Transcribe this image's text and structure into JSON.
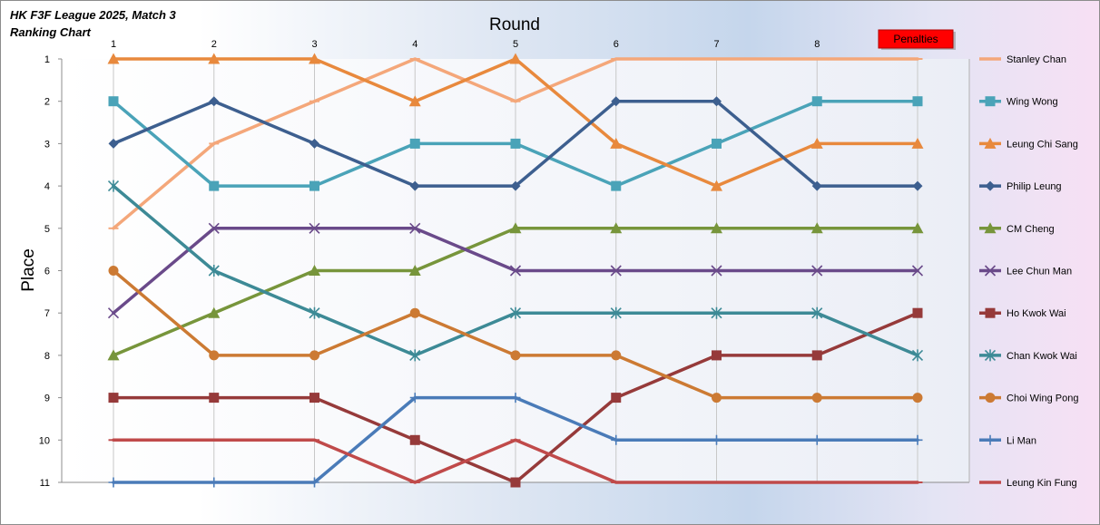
{
  "chart_data": {
    "type": "line",
    "title": "HK F3F League 2025, Match 3",
    "subtitle": "Ranking Chart",
    "xlabel": "Round",
    "ylabel": "Place",
    "x": [
      1,
      2,
      3,
      4,
      5,
      6,
      7,
      8,
      "Penalties"
    ],
    "x_tick_labels": [
      "1",
      "2",
      "3",
      "4",
      "5",
      "6",
      "7",
      "8"
    ],
    "penalties_label": "Penalties",
    "y_ticks": [
      1,
      2,
      3,
      4,
      5,
      6,
      7,
      8,
      9,
      10,
      11
    ],
    "ylim": [
      1,
      11
    ],
    "y_reversed": true,
    "grid": "vertical",
    "legend": "right",
    "series": [
      {
        "name": "Stanley Chan",
        "values": [
          5,
          3,
          2,
          1,
          2,
          1,
          1,
          1,
          1
        ],
        "color": "#f4a77a",
        "marker": "dash"
      },
      {
        "name": "Wing Wong",
        "values": [
          2,
          4,
          4,
          3,
          3,
          4,
          3,
          2,
          2
        ],
        "color": "#4aa3b8",
        "marker": "square"
      },
      {
        "name": "Leung Chi Sang",
        "values": [
          1,
          1,
          1,
          2,
          1,
          3,
          4,
          3,
          3
        ],
        "color": "#e8893d",
        "marker": "triangle"
      },
      {
        "name": "Philip Leung",
        "values": [
          3,
          2,
          3,
          4,
          4,
          2,
          2,
          4,
          4
        ],
        "color": "#3d5f8f",
        "marker": "diamond"
      },
      {
        "name": "CM Cheng",
        "values": [
          8,
          7,
          6,
          6,
          5,
          5,
          5,
          5,
          5
        ],
        "color": "#77953b",
        "marker": "triangle"
      },
      {
        "name": "Lee Chun Man",
        "values": [
          7,
          5,
          5,
          5,
          6,
          6,
          6,
          6,
          6
        ],
        "color": "#6a4a8a",
        "marker": "x"
      },
      {
        "name": "Ho Kwok Wai",
        "values": [
          9,
          9,
          9,
          10,
          11,
          9,
          8,
          8,
          7
        ],
        "color": "#963a3a",
        "marker": "square"
      },
      {
        "name": "Chan Kwok Wai",
        "values": [
          4,
          6,
          7,
          8,
          7,
          7,
          7,
          7,
          8
        ],
        "color": "#3d8a96",
        "marker": "star"
      },
      {
        "name": "Choi Wing Pong",
        "values": [
          6,
          8,
          8,
          7,
          8,
          8,
          9,
          9,
          9
        ],
        "color": "#cc7a33",
        "marker": "circle"
      },
      {
        "name": "Li Man",
        "values": [
          11,
          11,
          11,
          9,
          9,
          10,
          10,
          10,
          10
        ],
        "color": "#4a7bb8",
        "marker": "plus"
      },
      {
        "name": "Leung Kin Fung",
        "values": [
          10,
          10,
          10,
          11,
          10,
          11,
          11,
          11,
          11
        ],
        "color": "#c04a4a",
        "marker": "dash"
      }
    ]
  }
}
